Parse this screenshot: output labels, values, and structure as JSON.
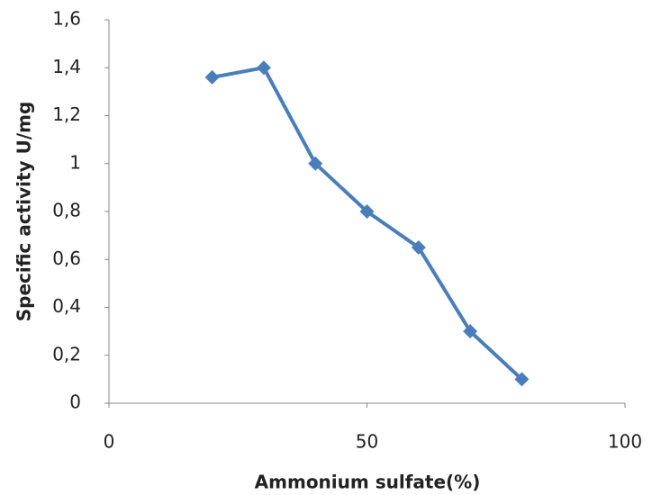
{
  "chart_data": {
    "type": "line",
    "xlabel": "Ammonium sulfate(%)",
    "ylabel": "Specific activity U/mg",
    "x": [
      20,
      30,
      40,
      50,
      60,
      70,
      80
    ],
    "values": [
      1.36,
      1.4,
      1.0,
      0.8,
      0.65,
      0.3,
      0.1
    ],
    "color": "#4a7ebb",
    "marker": "diamond",
    "xlim": [
      0,
      100
    ],
    "xticks": [
      0,
      50,
      100
    ],
    "ylim": [
      0,
      1.6
    ],
    "yticks": [
      0,
      {
        "value": 0.2,
        "label": "0,2"
      },
      {
        "value": 0.4,
        "label": "0,4"
      },
      {
        "value": 0.6,
        "label": "0,6"
      },
      {
        "value": 0.8,
        "label": "0,8"
      },
      1,
      {
        "value": 1.2,
        "label": "1,2"
      },
      {
        "value": 1.4,
        "label": "1,4"
      },
      {
        "value": 1.6,
        "label": "1,6"
      }
    ],
    "grid": false
  }
}
